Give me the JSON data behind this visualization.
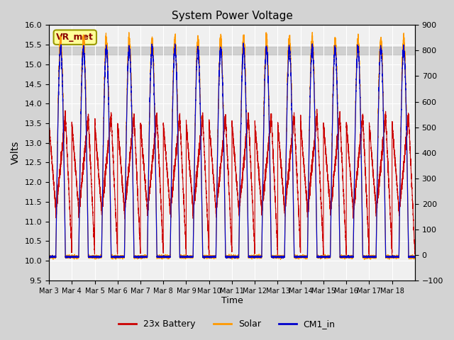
{
  "title": "System Power Voltage",
  "xlabel": "Time",
  "ylabel_left": "Volts",
  "ylim_left": [
    9.5,
    16.0
  ],
  "ylim_right": [
    -100,
    900
  ],
  "yticks_left": [
    9.5,
    10.0,
    10.5,
    11.0,
    11.5,
    12.0,
    12.5,
    13.0,
    13.5,
    14.0,
    14.5,
    15.0,
    15.5,
    16.0
  ],
  "yticks_right": [
    -100,
    0,
    100,
    200,
    300,
    400,
    500,
    600,
    700,
    800,
    900
  ],
  "xtick_labels": [
    "Mar 3",
    "Mar 4",
    "Mar 5",
    "Mar 6",
    "Mar 7",
    "Mar 8",
    "Mar 9",
    "Mar 10",
    "Mar 11",
    "Mar 12",
    "Mar 13",
    "Mar 14",
    "Mar 15",
    "Mar 16",
    "Mar 17",
    "Mar 18"
  ],
  "color_battery": "#cc0000",
  "color_solar": "#ff9900",
  "color_cm1": "#0000cc",
  "legend_labels": [
    "23x Battery",
    "Solar",
    "CM1_in"
  ],
  "annotation_text": "VR_met",
  "annotation_fg": "#8b0000",
  "annotation_bg": "#ffff99",
  "annotation_edge": "#999900",
  "background_color": "#d3d3d3",
  "plot_bg": "#f0f0f0",
  "shaded_band": [
    15.25,
    15.45
  ],
  "n_days": 16,
  "day_points": 480
}
